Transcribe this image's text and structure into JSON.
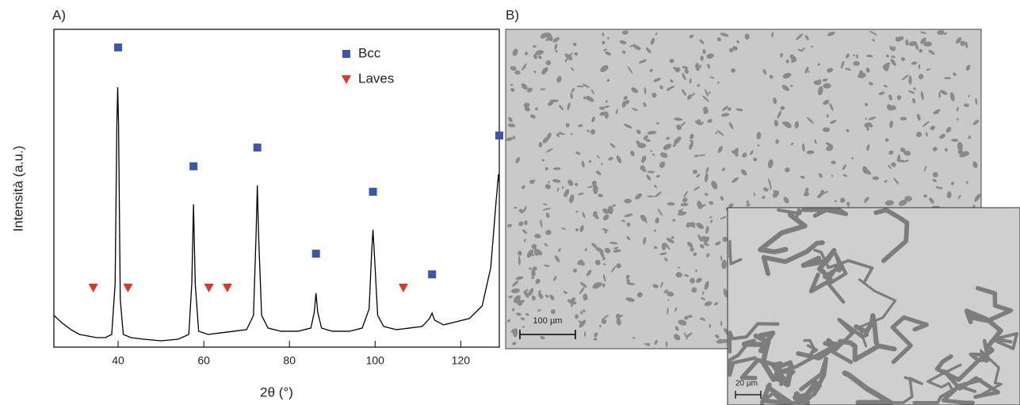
{
  "chart_data": {
    "type": "line",
    "panel_label": "A)",
    "xlabel": "2θ (°)",
    "ylabel": "Intensità (a.u.)",
    "xlim": [
      25,
      129
    ],
    "ylim": [
      0,
      100
    ],
    "xticks": [
      40,
      60,
      80,
      100,
      120
    ],
    "color": "#000000",
    "x": [
      25,
      27,
      29,
      31,
      33,
      35,
      37,
      38.5,
      39.3,
      39.7,
      39.9,
      40.1,
      40.5,
      41.2,
      43,
      46,
      50,
      54,
      56.5,
      57.2,
      57.6,
      58,
      58.8,
      61,
      64,
      67,
      70,
      71.6,
      72.2,
      72.5,
      72.8,
      73.5,
      75,
      78,
      82,
      85,
      85.8,
      86.2,
      86.6,
      87.5,
      90,
      94,
      97,
      98.6,
      99.2,
      99.5,
      99.8,
      100.6,
      102,
      105,
      108,
      111,
      112.7,
      113.3,
      113.9,
      116,
      119,
      122,
      125,
      127,
      128.2,
      128.8,
      129
    ],
    "values": [
      10,
      7.5,
      5.5,
      4,
      3.5,
      3,
      3,
      4,
      20,
      70,
      81.8,
      70,
      15,
      4,
      3,
      2.5,
      2,
      2.5,
      4,
      20,
      44.9,
      20,
      5,
      4,
      4.5,
      5,
      5.5,
      10,
      35,
      50.9,
      35,
      10,
      6,
      5,
      5,
      6,
      11,
      17,
      11,
      6,
      5,
      5,
      6,
      12,
      30,
      36.9,
      30,
      10,
      6.5,
      5.5,
      6,
      6.5,
      9,
      10.7,
      8.5,
      7,
      8,
      9,
      13,
      25,
      45,
      54.4,
      52
    ],
    "series": [
      {
        "name": "Bcc",
        "marker": "square",
        "color": "#3a56b0",
        "x": [
          40,
          57.6,
          72.5,
          86.2,
          99.5,
          113.3,
          129
        ],
        "values": [
          94.3,
          56.9,
          62.8,
          29.4,
          48.9,
          22.9,
          66.6
        ]
      },
      {
        "name": "Laves",
        "marker": "triangle",
        "color": "#e53228",
        "x": [
          34.2,
          42.3,
          61.2,
          65.5,
          106.6
        ],
        "values": [
          18.7,
          18.7,
          18.7,
          18.7,
          18.7
        ]
      }
    ]
  },
  "image": {
    "panel_label": "B)",
    "scale_bar": "100 µm",
    "inset_scale_bar": "20 µm"
  }
}
